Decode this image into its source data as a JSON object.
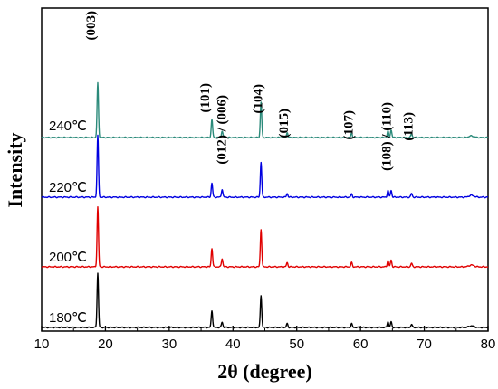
{
  "chart_data": {
    "type": "line",
    "xlabel": "2θ (degree)",
    "ylabel": "Intensity",
    "xlim": [
      10,
      80
    ],
    "x_ticks": [
      10,
      20,
      30,
      40,
      50,
      60,
      70,
      80
    ],
    "y_ticks_shown": false,
    "grid": false,
    "legend": "none (curves labelled inline)",
    "series": [
      {
        "name": "180℃",
        "color": "#000000",
        "peaks": [
          {
            "x": 18.8,
            "y": 100
          },
          {
            "x": 36.7,
            "y": 31
          },
          {
            "x": 38.3,
            "y": 10
          },
          {
            "x": 44.4,
            "y": 59
          },
          {
            "x": 48.5,
            "y": 7
          },
          {
            "x": 58.6,
            "y": 7
          },
          {
            "x": 64.3,
            "y": 11
          },
          {
            "x": 64.8,
            "y": 10
          },
          {
            "x": 68.0,
            "y": 6
          }
        ]
      },
      {
        "name": "200℃",
        "color": "#e00000",
        "peaks": [
          {
            "x": 18.8,
            "y": 100
          },
          {
            "x": 36.7,
            "y": 31
          },
          {
            "x": 38.3,
            "y": 14
          },
          {
            "x": 44.4,
            "y": 63
          },
          {
            "x": 48.5,
            "y": 7
          },
          {
            "x": 58.6,
            "y": 7
          },
          {
            "x": 64.3,
            "y": 11
          },
          {
            "x": 64.8,
            "y": 11
          },
          {
            "x": 68.0,
            "y": 6
          }
        ]
      },
      {
        "name": "220℃",
        "color": "#0000e0",
        "peaks": [
          {
            "x": 18.8,
            "y": 100
          },
          {
            "x": 36.7,
            "y": 23
          },
          {
            "x": 38.3,
            "y": 13
          },
          {
            "x": 44.4,
            "y": 57
          },
          {
            "x": 48.5,
            "y": 6
          },
          {
            "x": 58.6,
            "y": 5
          },
          {
            "x": 64.3,
            "y": 11
          },
          {
            "x": 64.8,
            "y": 11
          },
          {
            "x": 68.0,
            "y": 6
          }
        ]
      },
      {
        "name": "240℃",
        "color": "#2b8a7a",
        "peaks": [
          {
            "x": 18.8,
            "y": 100
          },
          {
            "x": 36.7,
            "y": 33
          },
          {
            "x": 38.3,
            "y": 12
          },
          {
            "x": 44.4,
            "y": 65
          },
          {
            "x": 48.5,
            "y": 9
          },
          {
            "x": 58.6,
            "y": 8
          },
          {
            "x": 64.3,
            "y": 12
          },
          {
            "x": 64.8,
            "y": 14
          },
          {
            "x": 68.0,
            "y": 7
          }
        ]
      }
    ],
    "annotations": [
      {
        "text": "(003)",
        "x": 18.8
      },
      {
        "text": "(101)",
        "x": 36.7
      },
      {
        "text": "(012) / (006)",
        "x": 38.3
      },
      {
        "text": "(104)",
        "x": 44.4
      },
      {
        "text": "(015)",
        "x": 48.5
      },
      {
        "text": "(107)",
        "x": 58.6
      },
      {
        "text": "(108) / (110)",
        "x": 64.6
      },
      {
        "text": "(113)",
        "x": 68.0
      }
    ]
  }
}
